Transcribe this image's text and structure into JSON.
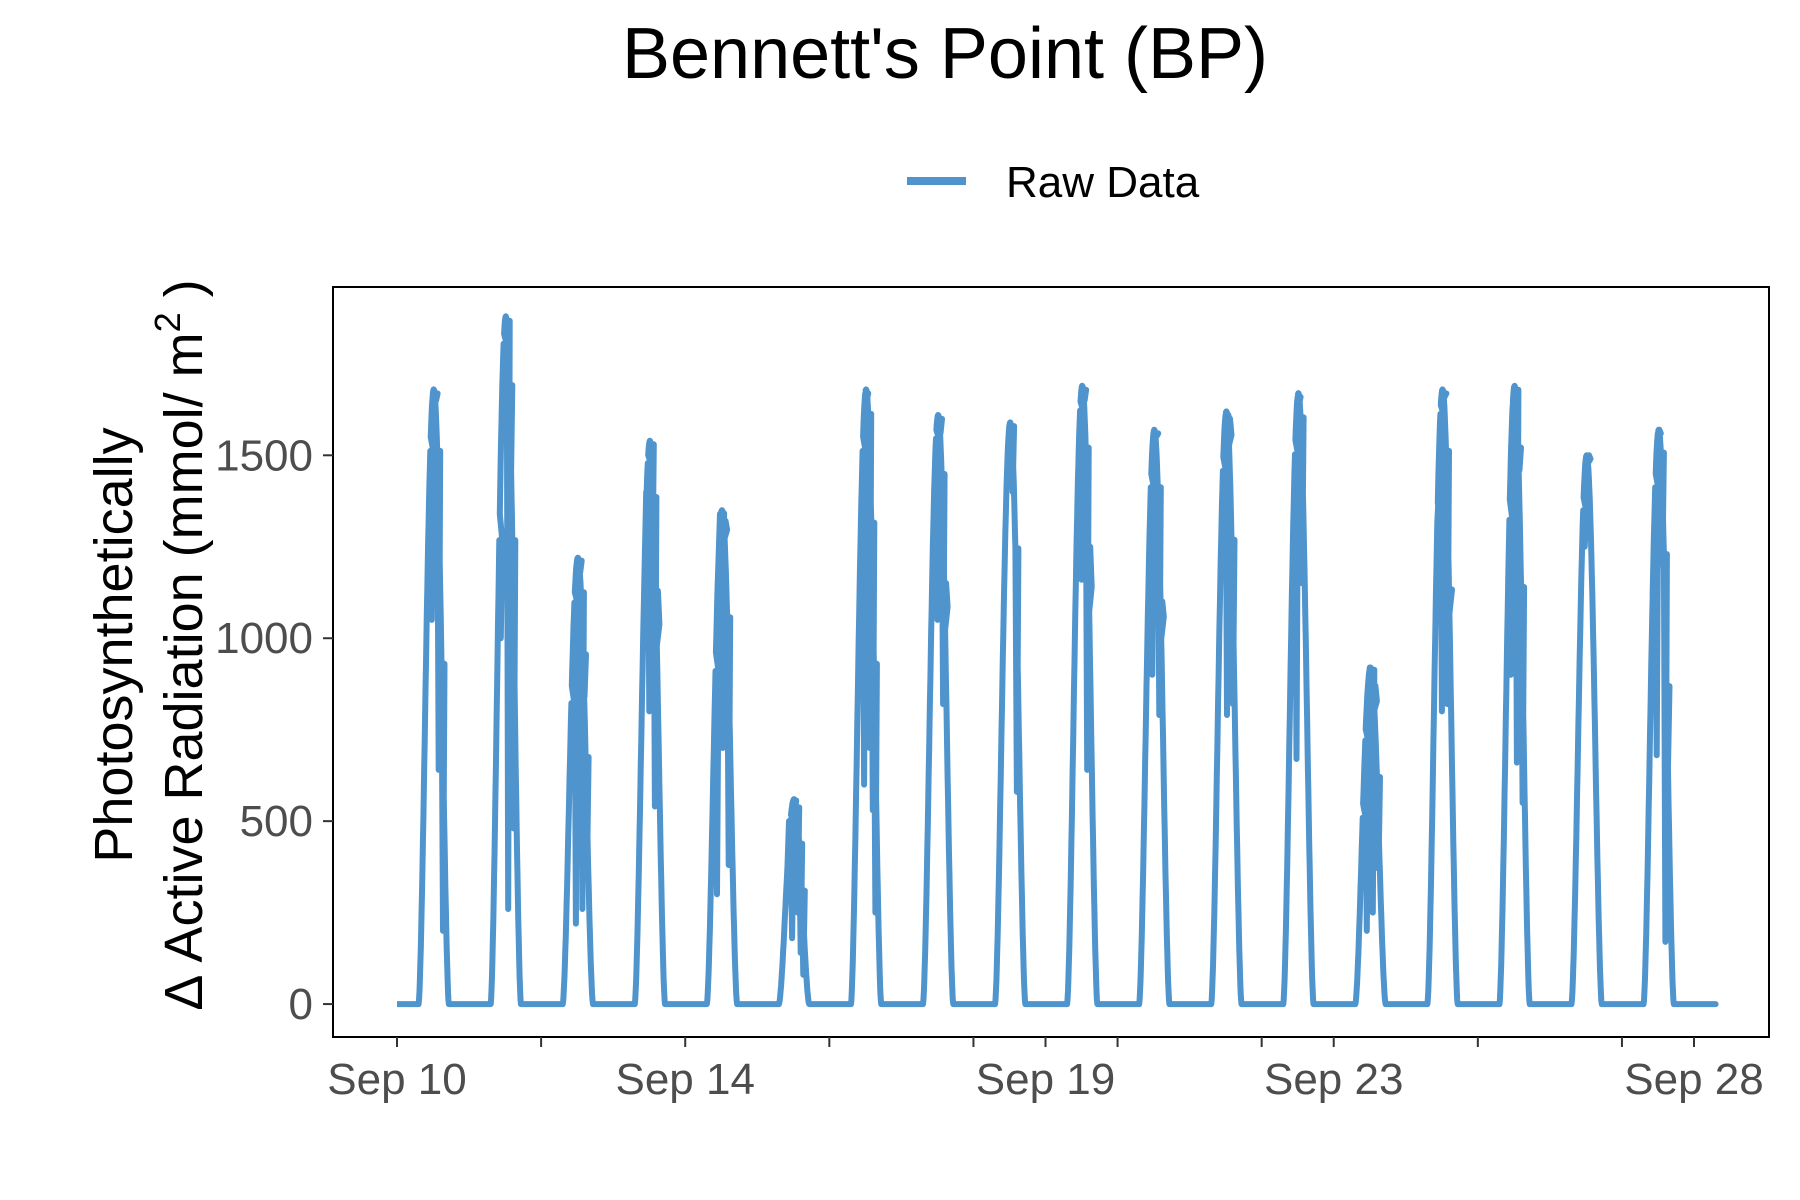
{
  "chart_data": {
    "type": "line",
    "title": "Bennett's Point (BP)",
    "ylabel_line1": "Photosynthetically",
    "ylabel_line2": "Δ Active Radiation (mmol/ m",
    "ylabel_sup": "2",
    "ylabel_close": ")",
    "xlabel": "",
    "legend": {
      "position": "top",
      "entries": [
        "Raw Data"
      ]
    },
    "colors": {
      "series": "#4f94cd",
      "axis": "#000000",
      "tick_text": "#4d4d4d"
    },
    "grid": false,
    "x_domain": [
      "2019-09-09",
      "2019-09-28"
    ],
    "x_ticks": [
      {
        "date": "2019-09-10",
        "label": "Sep 10"
      },
      {
        "date": "2019-09-14",
        "label": "Sep 14"
      },
      {
        "date": "2019-09-19",
        "label": "Sep 19"
      },
      {
        "date": "2019-09-23",
        "label": "Sep 23"
      },
      {
        "date": "2019-09-28",
        "label": "Sep 28"
      }
    ],
    "x_minor_ticks": [
      "2019-09-12",
      "2019-09-16",
      "2019-09-18",
      "2019-09-20",
      "2019-09-22",
      "2019-09-25",
      "2019-09-27"
    ],
    "ylim": [
      -90,
      1960
    ],
    "y_ticks": [
      0,
      500,
      1000,
      1500
    ],
    "series": [
      {
        "name": "Raw Data",
        "days": [
          {
            "date": "2019-09-10",
            "peak": 1680,
            "dips": [
              [
                0.46,
                1050
              ],
              [
                0.52,
                1650
              ],
              [
                0.56,
                640
              ],
              [
                0.62,
                200
              ]
            ]
          },
          {
            "date": "2019-09-11",
            "peak": 1880,
            "dips": [
              [
                0.42,
                1000
              ],
              [
                0.48,
                1600
              ],
              [
                0.52,
                260
              ],
              [
                0.56,
                1400
              ],
              [
                0.6,
                480
              ]
            ]
          },
          {
            "date": "2019-09-12",
            "peak": 1220,
            "dips": [
              [
                0.42,
                700
              ],
              [
                0.46,
                220
              ],
              [
                0.52,
                1180
              ],
              [
                0.55,
                260
              ],
              [
                0.58,
                840
              ],
              [
                0.62,
                380
              ]
            ]
          },
          {
            "date": "2019-09-13",
            "peak": 1540,
            "dips": [
              [
                0.44,
                1400
              ],
              [
                0.48,
                800
              ],
              [
                0.52,
                1150
              ],
              [
                0.56,
                540
              ],
              [
                0.6,
                1130
              ]
            ]
          },
          {
            "date": "2019-09-14",
            "peak": 1350,
            "dips": [
              [
                0.42,
                300
              ],
              [
                0.46,
                1340
              ],
              [
                0.5,
                700
              ],
              [
                0.54,
                1320
              ],
              [
                0.58,
                380
              ]
            ]
          },
          {
            "date": "2019-09-15",
            "peak": 560,
            "dips": [
              [
                0.42,
                500
              ],
              [
                0.46,
                180
              ],
              [
                0.5,
                520
              ],
              [
                0.54,
                250
              ],
              [
                0.58,
                140
              ],
              [
                0.62,
                80
              ]
            ]
          },
          {
            "date": "2019-09-16",
            "peak": 1680,
            "dips": [
              [
                0.46,
                600
              ],
              [
                0.5,
                1650
              ],
              [
                0.54,
                700
              ],
              [
                0.58,
                530
              ],
              [
                0.62,
                250
              ]
            ]
          },
          {
            "date": "2019-09-17",
            "peak": 1610,
            "dips": [
              [
                0.48,
                1050
              ],
              [
                0.52,
                1560
              ],
              [
                0.56,
                820
              ],
              [
                0.6,
                1150
              ]
            ]
          },
          {
            "date": "2019-09-18",
            "peak": 1590,
            "dips": [
              [
                0.52,
                1400
              ],
              [
                0.58,
                580
              ]
            ]
          },
          {
            "date": "2019-09-19",
            "peak": 1690,
            "dips": [
              [
                0.48,
                1160
              ],
              [
                0.52,
                1650
              ],
              [
                0.56,
                640
              ],
              [
                0.6,
                1250
              ]
            ]
          },
          {
            "date": "2019-09-20",
            "peak": 1570,
            "dips": [
              [
                0.46,
                900
              ],
              [
                0.52,
                1560
              ],
              [
                0.56,
                790
              ],
              [
                0.6,
                1100
              ]
            ]
          },
          {
            "date": "2019-09-21",
            "peak": 1620,
            "dips": [
              [
                0.46,
                1420
              ],
              [
                0.5,
                790
              ],
              [
                0.54,
                1600
              ],
              [
                0.58,
                820
              ]
            ]
          },
          {
            "date": "2019-09-22",
            "peak": 1670,
            "dips": [
              [
                0.46,
                670
              ],
              [
                0.5,
                1640
              ],
              [
                0.54,
                1150
              ]
            ]
          },
          {
            "date": "2019-09-23",
            "peak": 920,
            "dips": [
              [
                0.4,
                500
              ],
              [
                0.44,
                200
              ],
              [
                0.48,
                920
              ],
              [
                0.52,
                250
              ],
              [
                0.56,
                870
              ],
              [
                0.6,
                370
              ]
            ]
          },
          {
            "date": "2019-09-24",
            "peak": 1680,
            "dips": [
              [
                0.44,
                1400
              ],
              [
                0.48,
                800
              ],
              [
                0.52,
                1670
              ],
              [
                0.56,
                820
              ],
              [
                0.6,
                1100
              ]
            ]
          },
          {
            "date": "2019-09-25",
            "peak": 1690,
            "dips": [
              [
                0.44,
                900
              ],
              [
                0.48,
                1680
              ],
              [
                0.52,
                660
              ],
              [
                0.56,
                1460
              ],
              [
                0.6,
                550
              ]
            ]
          },
          {
            "date": "2019-09-26",
            "peak": 1500,
            "dips": [
              [
                0.46,
                1250
              ],
              [
                0.52,
                1500
              ]
            ]
          },
          {
            "date": "2019-09-27",
            "peak": 1570,
            "dips": [
              [
                0.42,
                1230
              ],
              [
                0.46,
                680
              ],
              [
                0.5,
                1570
              ],
              [
                0.54,
                1200
              ],
              [
                0.58,
                170
              ],
              [
                0.62,
                650
              ]
            ]
          }
        ]
      }
    ]
  }
}
